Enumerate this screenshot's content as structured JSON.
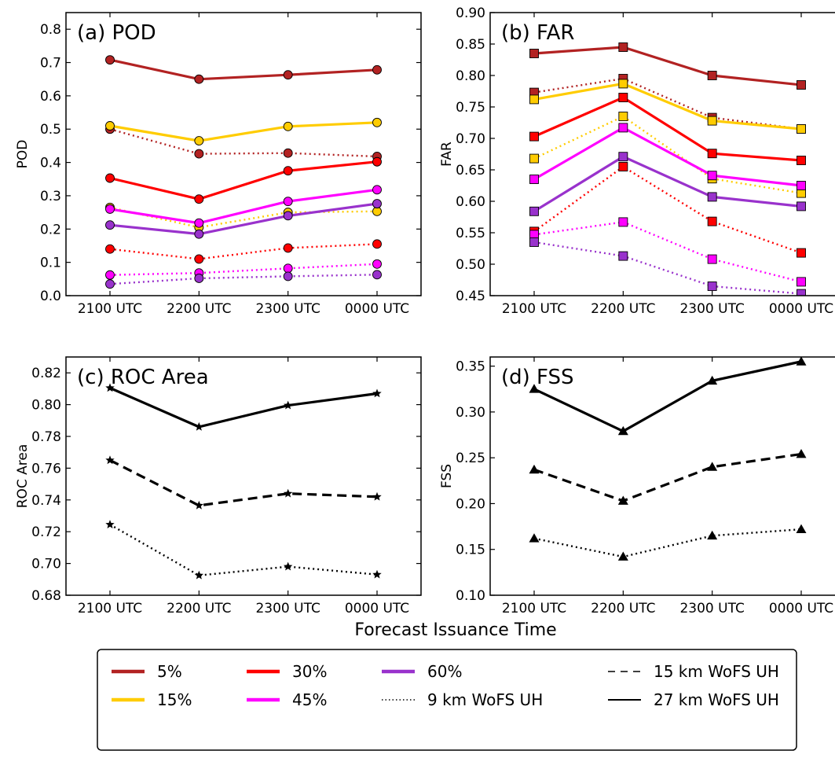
{
  "figure": {
    "xlabel": "Forecast Issuance Time",
    "colors": {
      "p5": "#b22222",
      "p15": "#ffcc00",
      "p30": "#ff0000",
      "p45": "#ff00ff",
      "p60": "#9932cc",
      "black": "#000000"
    }
  },
  "legend": {
    "items": [
      {
        "label": "5%",
        "style": "solid",
        "color": "#b22222"
      },
      {
        "label": "15%",
        "style": "solid",
        "color": "#ffcc00"
      },
      {
        "label": "30%",
        "style": "solid",
        "color": "#ff0000"
      },
      {
        "label": "45%",
        "style": "solid",
        "color": "#ff00ff"
      },
      {
        "label": "60%",
        "style": "solid",
        "color": "#9932cc"
      },
      {
        "label": "9 km WoFS UH",
        "style": "dotted",
        "color": "#000000"
      },
      {
        "label": "15 km WoFS UH",
        "style": "dashed",
        "color": "#000000"
      },
      {
        "label": "27 km WoFS UH",
        "style": "solid",
        "color": "#000000"
      }
    ]
  },
  "chart_data": [
    {
      "type": "line",
      "title": "(a) POD",
      "ylabel": "POD",
      "xlabel": "",
      "categories": [
        "2100 UTC",
        "2200 UTC",
        "2300 UTC",
        "0000 UTC"
      ],
      "ylim": [
        0.0,
        0.85
      ],
      "yticks": [
        0.0,
        0.1,
        0.2,
        0.3,
        0.4,
        0.5,
        0.6,
        0.7,
        0.8
      ],
      "ytick_labels": [
        "0.0",
        "0.1",
        "0.2",
        "0.3",
        "0.4",
        "0.5",
        "0.6",
        "0.7",
        "0.8"
      ],
      "marker": "circle",
      "series": [
        {
          "threshold": "5%",
          "uh": "9 km",
          "color": "#b22222",
          "style": "dotted",
          "values": [
            0.5,
            0.426,
            0.428,
            0.418
          ]
        },
        {
          "threshold": "15%",
          "uh": "9 km",
          "color": "#ffcc00",
          "style": "dotted",
          "values": [
            0.265,
            0.205,
            0.25,
            0.253
          ]
        },
        {
          "threshold": "30%",
          "uh": "9 km",
          "color": "#ff0000",
          "style": "dotted",
          "values": [
            0.14,
            0.11,
            0.143,
            0.155
          ]
        },
        {
          "threshold": "45%",
          "uh": "9 km",
          "color": "#ff00ff",
          "style": "dotted",
          "values": [
            0.062,
            0.068,
            0.082,
            0.095
          ]
        },
        {
          "threshold": "60%",
          "uh": "9 km",
          "color": "#9932cc",
          "style": "dotted",
          "values": [
            0.035,
            0.052,
            0.058,
            0.063
          ]
        },
        {
          "threshold": "5%",
          "uh": "27 km",
          "color": "#b22222",
          "style": "solid",
          "values": [
            0.708,
            0.65,
            0.663,
            0.678
          ]
        },
        {
          "threshold": "15%",
          "uh": "27 km",
          "color": "#ffcc00",
          "style": "solid",
          "values": [
            0.51,
            0.465,
            0.508,
            0.52
          ]
        },
        {
          "threshold": "30%",
          "uh": "27 km",
          "color": "#ff0000",
          "style": "solid",
          "values": [
            0.353,
            0.29,
            0.375,
            0.402
          ]
        },
        {
          "threshold": "45%",
          "uh": "27 km",
          "color": "#ff00ff",
          "style": "solid",
          "values": [
            0.26,
            0.218,
            0.283,
            0.318
          ]
        },
        {
          "threshold": "60%",
          "uh": "27 km",
          "color": "#9932cc",
          "style": "solid",
          "values": [
            0.212,
            0.185,
            0.24,
            0.276
          ]
        }
      ]
    },
    {
      "type": "line",
      "title": "(b) FAR",
      "ylabel": "FAR",
      "xlabel": "",
      "categories": [
        "2100 UTC",
        "2200 UTC",
        "2300 UTC",
        "0000 UTC"
      ],
      "ylim": [
        0.45,
        0.9
      ],
      "yticks": [
        0.45,
        0.5,
        0.55,
        0.6,
        0.65,
        0.7,
        0.75,
        0.8,
        0.85,
        0.9
      ],
      "ytick_labels": [
        "0.45",
        "0.50",
        "0.55",
        "0.60",
        "0.65",
        "0.70",
        "0.75",
        "0.80",
        "0.85",
        "0.90"
      ],
      "marker": "square",
      "series": [
        {
          "threshold": "5%",
          "uh": "9 km",
          "color": "#b22222",
          "style": "dotted",
          "values": [
            0.773,
            0.795,
            0.733,
            0.715
          ]
        },
        {
          "threshold": "15%",
          "uh": "9 km",
          "color": "#ffcc00",
          "style": "dotted",
          "values": [
            0.668,
            0.735,
            0.636,
            0.613
          ]
        },
        {
          "threshold": "30%",
          "uh": "9 km",
          "color": "#ff0000",
          "style": "dotted",
          "values": [
            0.552,
            0.655,
            0.568,
            0.518
          ]
        },
        {
          "threshold": "45%",
          "uh": "9 km",
          "color": "#ff00ff",
          "style": "dotted",
          "values": [
            0.547,
            0.567,
            0.508,
            0.472
          ]
        },
        {
          "threshold": "60%",
          "uh": "9 km",
          "color": "#9932cc",
          "style": "dotted",
          "values": [
            0.535,
            0.513,
            0.465,
            0.453
          ]
        },
        {
          "threshold": "5%",
          "uh": "27 km",
          "color": "#b22222",
          "style": "solid",
          "values": [
            0.835,
            0.845,
            0.8,
            0.785
          ]
        },
        {
          "threshold": "15%",
          "uh": "27 km",
          "color": "#ffcc00",
          "style": "solid",
          "values": [
            0.762,
            0.787,
            0.728,
            0.715
          ]
        },
        {
          "threshold": "30%",
          "uh": "27 km",
          "color": "#ff0000",
          "style": "solid",
          "values": [
            0.703,
            0.765,
            0.676,
            0.665
          ]
        },
        {
          "threshold": "45%",
          "uh": "27 km",
          "color": "#ff00ff",
          "style": "solid",
          "values": [
            0.635,
            0.717,
            0.641,
            0.625
          ]
        },
        {
          "threshold": "60%",
          "uh": "27 km",
          "color": "#9932cc",
          "style": "solid",
          "values": [
            0.584,
            0.671,
            0.607,
            0.592
          ]
        }
      ]
    },
    {
      "type": "line",
      "title": "(c) ROC Area",
      "ylabel": "ROC Area",
      "xlabel": "",
      "categories": [
        "2100 UTC",
        "2200 UTC",
        "2300 UTC",
        "0000 UTC"
      ],
      "ylim": [
        0.68,
        0.83
      ],
      "yticks": [
        0.68,
        0.7,
        0.72,
        0.74,
        0.76,
        0.78,
        0.8,
        0.82
      ],
      "ytick_labels": [
        "0.68",
        "0.70",
        "0.72",
        "0.74",
        "0.76",
        "0.78",
        "0.80",
        "0.82"
      ],
      "marker": "star",
      "series": [
        {
          "uh": "9 km",
          "color": "#000000",
          "style": "dotted",
          "values": [
            0.7245,
            0.6925,
            0.698,
            0.693
          ]
        },
        {
          "uh": "15 km",
          "color": "#000000",
          "style": "dashed",
          "values": [
            0.765,
            0.7365,
            0.744,
            0.742
          ]
        },
        {
          "uh": "27 km",
          "color": "#000000",
          "style": "solid",
          "values": [
            0.8105,
            0.786,
            0.7995,
            0.807
          ]
        }
      ]
    },
    {
      "type": "line",
      "title": "(d) FSS",
      "ylabel": "FSS",
      "xlabel": "",
      "categories": [
        "2100 UTC",
        "2200 UTC",
        "2300 UTC",
        "0000 UTC"
      ],
      "ylim": [
        0.1,
        0.36
      ],
      "yticks": [
        0.1,
        0.15,
        0.2,
        0.25,
        0.3,
        0.35
      ],
      "ytick_labels": [
        "0.10",
        "0.15",
        "0.20",
        "0.25",
        "0.30",
        "0.35"
      ],
      "marker": "triangle",
      "series": [
        {
          "uh": "9 km",
          "color": "#000000",
          "style": "dotted",
          "values": [
            0.162,
            0.142,
            0.165,
            0.172
          ]
        },
        {
          "uh": "15 km",
          "color": "#000000",
          "style": "dashed",
          "values": [
            0.237,
            0.203,
            0.24,
            0.254
          ]
        },
        {
          "uh": "27 km",
          "color": "#000000",
          "style": "solid",
          "values": [
            0.325,
            0.279,
            0.334,
            0.355
          ]
        }
      ]
    }
  ]
}
